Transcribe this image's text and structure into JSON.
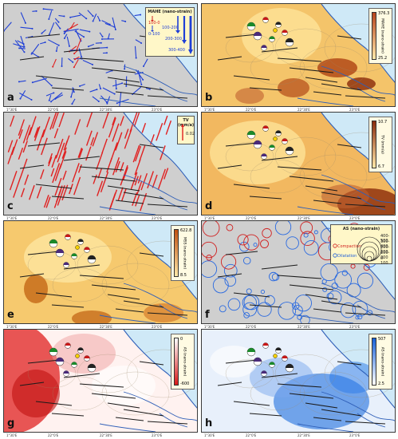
{
  "panels": {
    "a": {
      "label": "a",
      "legend_title": "MAHE (nano-strain)",
      "leg_left1": "100-0",
      "leg_left2": "0-100",
      "leg_r1": "100-200",
      "leg_r2": "200-300",
      "leg_r3": "300-400"
    },
    "b": {
      "label": "b",
      "title": "MAHE (nano-strain)",
      "max": "376.3",
      "min": "25.2"
    },
    "c": {
      "label": "c",
      "title": "TV (mm/a)",
      "scale": "0.02"
    },
    "d": {
      "label": "d",
      "title": "TV (mm/a)",
      "max": "10.7",
      "min": "6.7"
    },
    "e": {
      "label": "e",
      "title": "MSS (nano-strain)",
      "max": "622.8",
      "min": "8.5"
    },
    "f": {
      "label": "f",
      "legend_title": "AS (nano-strain)",
      "comp": "Compaction",
      "dil": "Dilatation",
      "s1": "400-500",
      "s2": "300-400",
      "s3": "200-300",
      "s4": "100-200",
      "s5": "0-100"
    },
    "g": {
      "label": "g",
      "title": "AS (nano-strain)",
      "max": "0",
      "min": "-600"
    },
    "h": {
      "label": "h",
      "title": "AS (nano-strain)",
      "max": "507",
      "min": "2.5"
    }
  },
  "axis_ticks": {
    "t1": "1°30'E",
    "t2": "22°0'E",
    "t3": "22°30'E",
    "t4": "23°0'E"
  },
  "colors": {
    "land": "#cfcfcf",
    "sea": "#cfe9f7",
    "vector_blue": "#1f3fd6",
    "vector_red": "#e02020",
    "fault": "#1a1a1a",
    "river": "#2f5fb8",
    "warm_low": "#fff1c0",
    "warm_high": "#c0501a",
    "red_high": "#d81818",
    "blue_high": "#1660d8"
  }
}
